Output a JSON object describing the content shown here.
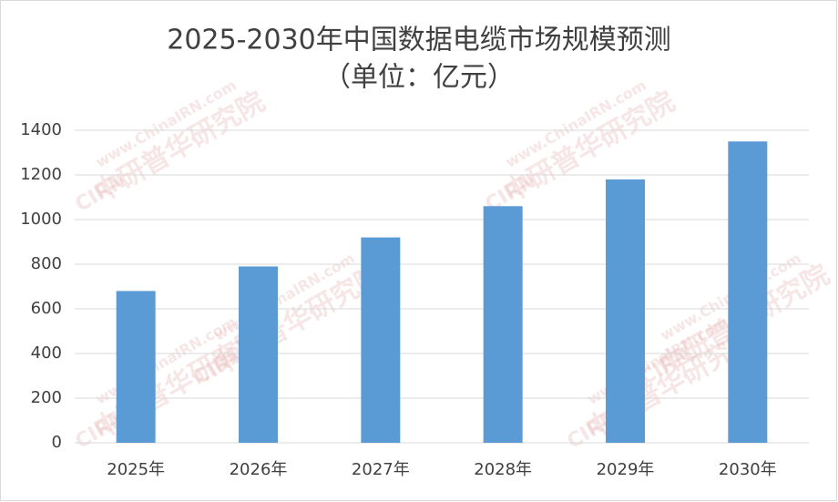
{
  "chart_data": {
    "type": "bar",
    "title": "2025-2030年中国数据电缆市场规模预测",
    "subtitle": "（单位：亿元）",
    "categories": [
      "2025年",
      "2026年",
      "2027年",
      "2028年",
      "2029年",
      "2030年"
    ],
    "values": [
      680,
      790,
      920,
      1060,
      1180,
      1350
    ],
    "color": "#5b9bd5",
    "ylim": [
      0,
      1400
    ],
    "yticks": [
      0,
      200,
      400,
      600,
      800,
      1000,
      1200,
      1400
    ],
    "grid": true,
    "watermark": {
      "url": "www.ChinaIRN.com",
      "name": "中研普华研究院",
      "logo": "CIRN"
    }
  }
}
